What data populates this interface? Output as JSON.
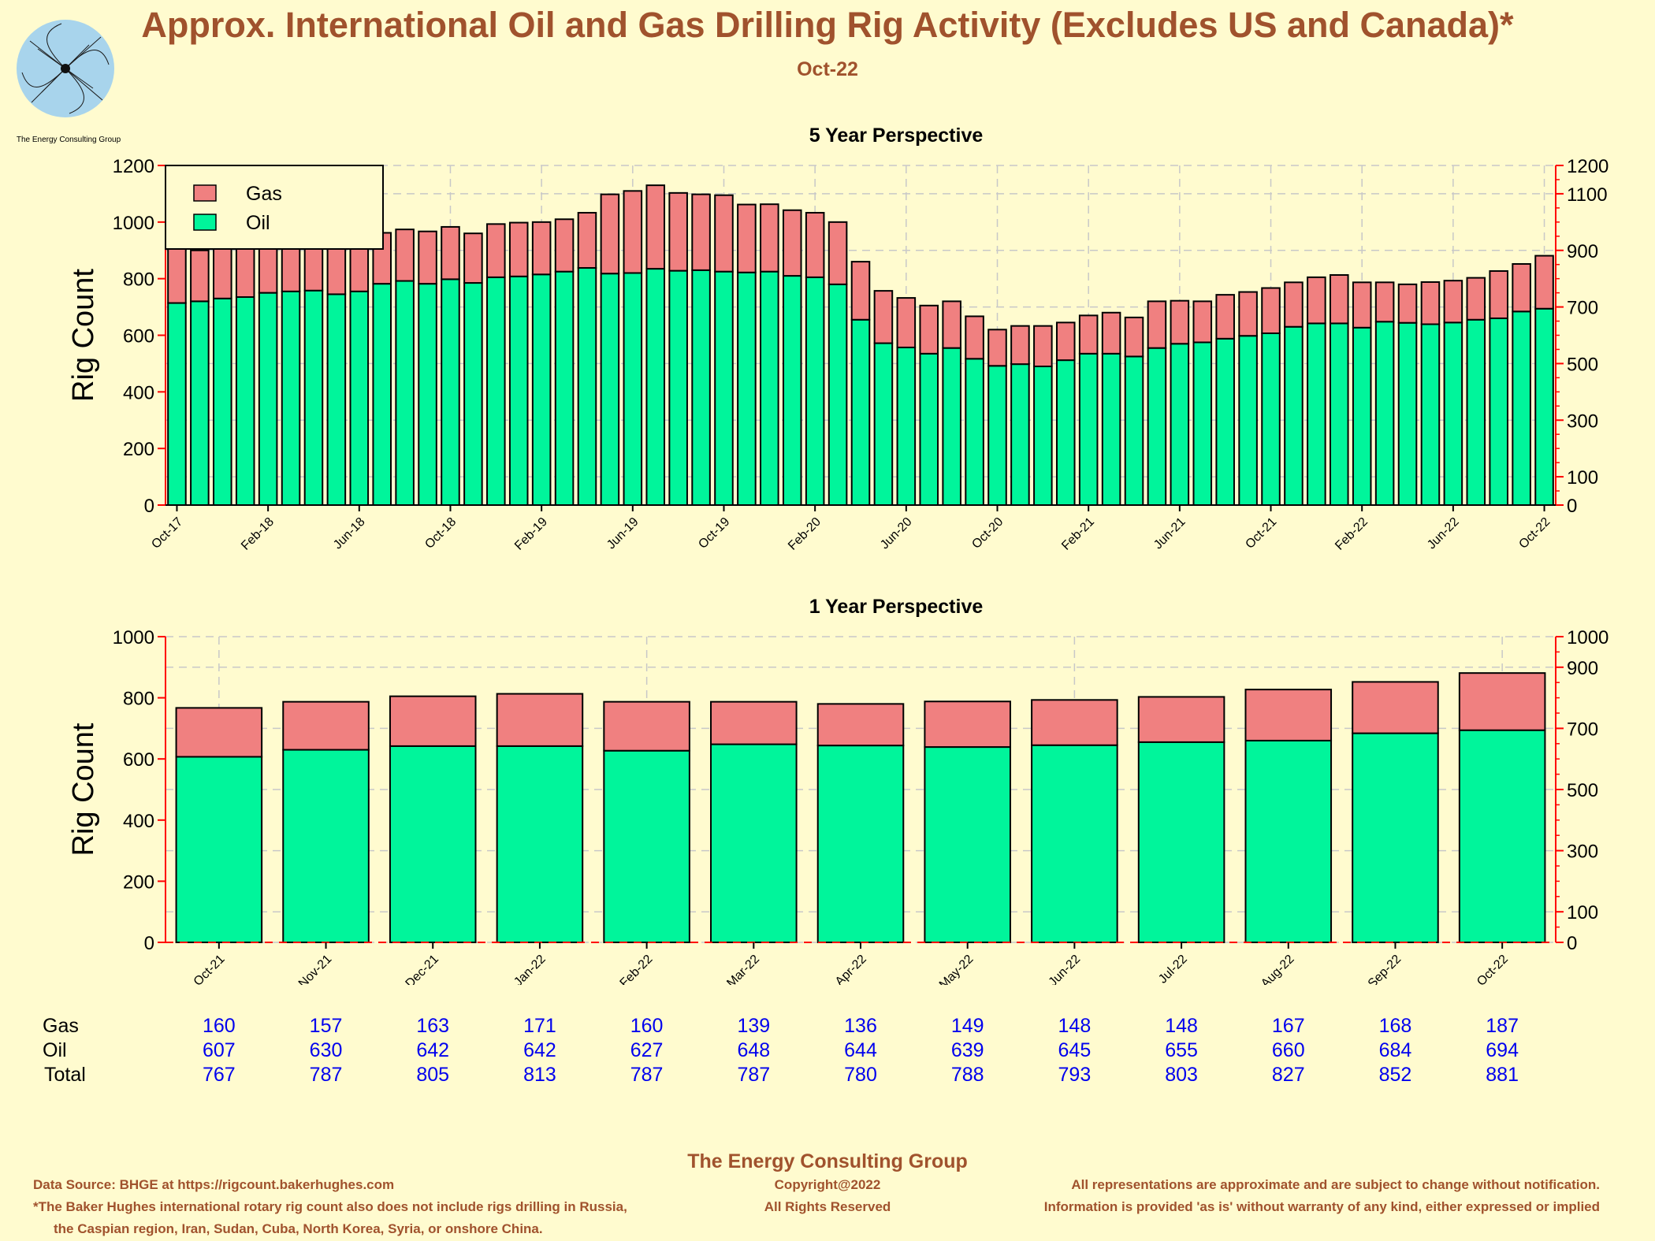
{
  "header": {
    "title": "Approx. International Oil and Gas Drilling Rig Activity (Excludes US and Canada)*",
    "subtitle": "Oct-22",
    "logo_text": "The Energy Consulting Group"
  },
  "colors": {
    "gas": "#f08080",
    "oil": "#00f59b",
    "title": "#a0522d",
    "table_values": "#0000ee",
    "axis_right": "#ff0000"
  },
  "chart_data": [
    {
      "type": "bar",
      "stacked": true,
      "title": "5 Year Perspective",
      "ylabel": "Rig Count",
      "ylim": [
        0,
        1200
      ],
      "yticks_left": [
        0,
        200,
        400,
        600,
        800,
        1000,
        1200
      ],
      "yticks_right": [
        0,
        100,
        300,
        500,
        700,
        900,
        1100,
        1200
      ],
      "xtick_labels": [
        "Oct-17",
        "Feb-18",
        "Jun-18",
        "Oct-18",
        "Feb-19",
        "Jun-19",
        "Oct-19",
        "Feb-20",
        "Jun-20",
        "Oct-20",
        "Feb-21",
        "Jun-21",
        "Oct-21",
        "Feb-22",
        "Jun-22",
        "Oct-22"
      ],
      "legend": {
        "entries": [
          "Gas",
          "Oil"
        ],
        "position": "top-left"
      },
      "grid": true,
      "categories": [
        "Oct-17",
        "Nov-17",
        "Dec-17",
        "Jan-18",
        "Feb-18",
        "Mar-18",
        "Apr-18",
        "May-18",
        "Jun-18",
        "Jul-18",
        "Aug-18",
        "Sep-18",
        "Oct-18",
        "Nov-18",
        "Dec-18",
        "Jan-19",
        "Feb-19",
        "Mar-19",
        "Apr-19",
        "May-19",
        "Jun-19",
        "Jul-19",
        "Aug-19",
        "Sep-19",
        "Oct-19",
        "Nov-19",
        "Dec-19",
        "Jan-20",
        "Feb-20",
        "Mar-20",
        "Apr-20",
        "May-20",
        "Jun-20",
        "Jul-20",
        "Aug-20",
        "Sep-20",
        "Oct-20",
        "Nov-20",
        "Dec-20",
        "Jan-21",
        "Feb-21",
        "Mar-21",
        "Apr-21",
        "May-21",
        "Jun-21",
        "Jul-21",
        "Aug-21",
        "Sep-21",
        "Oct-21",
        "Nov-21",
        "Dec-21",
        "Jan-22",
        "Feb-22",
        "Mar-22",
        "Apr-22",
        "May-22",
        "Jun-22",
        "Jul-22",
        "Aug-22",
        "Sep-22",
        "Oct-22"
      ],
      "series": [
        {
          "name": "Oil",
          "values": [
            714,
            720,
            730,
            735,
            750,
            755,
            758,
            745,
            755,
            782,
            792,
            782,
            798,
            785,
            805,
            808,
            815,
            825,
            838,
            818,
            820,
            835,
            828,
            830,
            825,
            822,
            825,
            810,
            805,
            780,
            655,
            572,
            557,
            535,
            555,
            517,
            492,
            498,
            490,
            512,
            535,
            535,
            525,
            555,
            570,
            575,
            588,
            598,
            607,
            630,
            642,
            642,
            627,
            648,
            644,
            639,
            645,
            655,
            660,
            684,
            694
          ]
        },
        {
          "name": "Gas",
          "values": [
            195,
            180,
            185,
            195,
            185,
            195,
            190,
            205,
            195,
            180,
            182,
            185,
            185,
            175,
            188,
            190,
            185,
            185,
            195,
            280,
            290,
            295,
            275,
            268,
            270,
            240,
            238,
            232,
            228,
            220,
            205,
            185,
            175,
            170,
            165,
            150,
            128,
            135,
            143,
            133,
            135,
            145,
            138,
            165,
            152,
            145,
            155,
            155,
            160,
            157,
            163,
            171,
            160,
            139,
            136,
            149,
            148,
            148,
            167,
            168,
            187
          ]
        }
      ]
    },
    {
      "type": "bar",
      "stacked": true,
      "title": "1 Year Perspective",
      "ylabel": "Rig Count",
      "ylim": [
        0,
        1000
      ],
      "yticks_left": [
        0,
        200,
        400,
        600,
        800,
        1000
      ],
      "yticks_right": [
        0,
        100,
        300,
        500,
        700,
        900,
        1000
      ],
      "grid": true,
      "categories": [
        "Oct-21",
        "Nov-21",
        "Dec-21",
        "Jan-22",
        "Feb-22",
        "Mar-22",
        "Apr-22",
        "May-22",
        "Jun-22",
        "Jul-22",
        "Aug-22",
        "Sep-22",
        "Oct-22"
      ],
      "series": [
        {
          "name": "Gas",
          "values": [
            160,
            157,
            163,
            171,
            160,
            139,
            136,
            149,
            148,
            148,
            167,
            168,
            187
          ]
        },
        {
          "name": "Oil",
          "values": [
            607,
            630,
            642,
            642,
            627,
            648,
            644,
            639,
            645,
            655,
            660,
            684,
            694
          ]
        }
      ]
    }
  ],
  "table": {
    "rows": [
      {
        "label": "Gas",
        "values": [
          160,
          157,
          163,
          171,
          160,
          139,
          136,
          149,
          148,
          148,
          167,
          168,
          187
        ]
      },
      {
        "label": "Oil",
        "values": [
          607,
          630,
          642,
          642,
          627,
          648,
          644,
          639,
          645,
          655,
          660,
          684,
          694
        ]
      },
      {
        "label": "Total",
        "values": [
          767,
          787,
          805,
          813,
          787,
          787,
          780,
          788,
          793,
          803,
          827,
          852,
          881
        ]
      }
    ]
  },
  "footer": {
    "org": "The Energy Consulting Group",
    "source": "Data Source: BHGE at https://rigcount.bakerhughes.com",
    "note_line1": "*The Baker Hughes international rotary rig count also does not include rigs drilling in Russia,",
    "note_line2": "the Caspian region, Iran, Sudan, Cuba, North Korea, Syria, or onshore China.",
    "copyright": "Copyright@2022",
    "rights": "All Rights Reserved",
    "disclaimer1": "All representations are approximate and are subject to change without notification.",
    "disclaimer2": "Information is provided 'as is' without warranty of any kind, either expressed or implied"
  }
}
